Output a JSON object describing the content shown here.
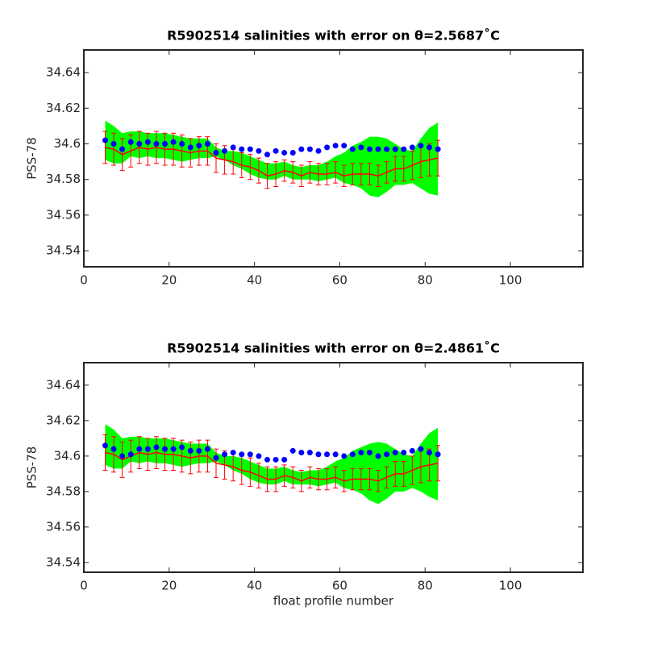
{
  "chart_data": [
    {
      "type": "errorbar",
      "title": "R5902514 salinities with error on θ=2.5687˚C",
      "ylabel": "PSS-78",
      "xlim": [
        0,
        117
      ],
      "xticks": [
        0,
        20,
        40,
        60,
        80,
        100
      ],
      "ylim": [
        34.531,
        34.6527
      ],
      "yticks": [
        34.54,
        34.56,
        34.58,
        34.6,
        34.62,
        34.64
      ],
      "x": [
        5,
        7,
        9,
        11,
        13,
        15,
        17,
        19,
        21,
        23,
        25,
        27,
        29,
        31,
        33,
        35,
        37,
        39,
        41,
        43,
        45,
        47,
        49,
        51,
        53,
        55,
        57,
        59,
        61,
        63,
        65,
        67,
        69,
        71,
        73,
        75,
        77,
        79,
        81,
        83
      ],
      "band": {
        "color": "#00ff00",
        "lower": [
          34.591,
          34.589,
          34.589,
          34.593,
          34.592,
          34.593,
          34.592,
          34.592,
          34.591,
          34.59,
          34.591,
          34.592,
          34.592,
          34.593,
          34.591,
          34.588,
          34.586,
          34.583,
          34.581,
          34.58,
          34.58,
          34.582,
          34.58,
          34.58,
          34.58,
          34.579,
          34.58,
          34.581,
          34.578,
          34.577,
          34.575,
          34.571,
          34.57,
          34.573,
          34.577,
          34.577,
          34.578,
          34.575,
          34.572,
          34.571
        ],
        "upper": [
          34.613,
          34.61,
          34.606,
          34.607,
          34.607,
          34.606,
          34.606,
          34.606,
          34.605,
          34.604,
          34.603,
          34.603,
          34.603,
          34.598,
          34.596,
          34.596,
          34.595,
          34.593,
          34.591,
          34.589,
          34.589,
          34.59,
          34.588,
          34.587,
          34.588,
          34.588,
          34.59,
          34.593,
          34.595,
          34.599,
          34.601,
          34.604,
          34.604,
          34.603,
          34.6,
          34.597,
          34.596,
          34.603,
          34.609,
          34.612
        ]
      },
      "series": [
        {
          "color": "#ff0000",
          "values": [
            34.598,
            34.597,
            34.594,
            34.596,
            34.598,
            34.597,
            34.598,
            34.597,
            34.597,
            34.596,
            34.595,
            34.596,
            34.596,
            34.592,
            34.591,
            34.59,
            34.588,
            34.587,
            34.585,
            34.582,
            34.583,
            34.585,
            34.584,
            34.582,
            34.584,
            34.583,
            34.583,
            34.584,
            34.582,
            34.583,
            34.583,
            34.583,
            34.582,
            34.584,
            34.586,
            34.586,
            34.588,
            34.59,
            34.591,
            34.592
          ],
          "errors": [
            0.009,
            0.009,
            0.009,
            0.009,
            0.009,
            0.009,
            0.009,
            0.009,
            0.009,
            0.009,
            0.008,
            0.008,
            0.008,
            0.008,
            0.008,
            0.007,
            0.007,
            0.007,
            0.007,
            0.007,
            0.007,
            0.006,
            0.006,
            0.006,
            0.006,
            0.006,
            0.006,
            0.006,
            0.006,
            0.006,
            0.006,
            0.006,
            0.006,
            0.006,
            0.007,
            0.007,
            0.008,
            0.009,
            0.009,
            0.01
          ]
        },
        {
          "color": "#0000ff",
          "values": [
            34.602,
            34.6,
            34.597,
            34.601,
            34.6,
            34.601,
            34.6,
            34.6,
            34.601,
            34.6,
            34.598,
            34.599,
            34.6,
            34.595,
            34.596,
            34.598,
            34.597,
            34.597,
            34.596,
            34.594,
            34.596,
            34.595,
            34.595,
            34.597,
            34.597,
            34.596,
            34.598,
            34.599,
            34.599,
            34.597,
            34.598,
            34.597,
            34.597,
            34.597,
            34.597,
            34.597,
            34.598,
            34.599,
            34.598,
            34.597
          ]
        }
      ]
    },
    {
      "type": "errorbar",
      "title": "R5902514 salinities with error on θ=2.4861˚C",
      "ylabel": "PSS-78",
      "xlabel": "float profile number",
      "xlim": [
        0,
        117
      ],
      "xticks": [
        0,
        20,
        40,
        60,
        80,
        100
      ],
      "ylim": [
        34.5345,
        34.6527
      ],
      "yticks": [
        34.54,
        34.56,
        34.58,
        34.6,
        34.62,
        34.64
      ],
      "x": [
        5,
        7,
        9,
        11,
        13,
        15,
        17,
        19,
        21,
        23,
        25,
        27,
        29,
        31,
        33,
        35,
        37,
        39,
        41,
        43,
        45,
        47,
        49,
        51,
        53,
        55,
        57,
        59,
        61,
        63,
        65,
        67,
        69,
        71,
        73,
        75,
        77,
        79,
        81,
        83
      ],
      "band": {
        "color": "#00ff00",
        "lower": [
          34.595,
          34.593,
          34.593,
          34.597,
          34.596,
          34.597,
          34.596,
          34.596,
          34.595,
          34.594,
          34.595,
          34.596,
          34.596,
          34.597,
          34.595,
          34.592,
          34.59,
          34.587,
          34.585,
          34.584,
          34.584,
          34.586,
          34.584,
          34.584,
          34.584,
          34.583,
          34.584,
          34.585,
          34.582,
          34.581,
          34.579,
          34.575,
          34.573,
          34.576,
          34.58,
          34.58,
          34.582,
          34.58,
          34.577,
          34.575
        ],
        "upper": [
          34.618,
          34.615,
          34.61,
          34.611,
          34.611,
          34.61,
          34.61,
          34.61,
          34.609,
          34.608,
          34.607,
          34.607,
          34.607,
          34.602,
          34.6,
          34.6,
          34.599,
          34.597,
          34.595,
          34.593,
          34.593,
          34.594,
          34.592,
          34.591,
          34.592,
          34.592,
          34.594,
          34.597,
          34.599,
          34.603,
          34.605,
          34.607,
          34.608,
          34.607,
          34.604,
          34.601,
          34.6,
          34.607,
          34.613,
          34.616
        ]
      },
      "series": [
        {
          "color": "#ff0000",
          "values": [
            34.602,
            34.601,
            34.598,
            34.6,
            34.602,
            34.601,
            34.602,
            34.601,
            34.601,
            34.6,
            34.599,
            34.6,
            34.6,
            34.596,
            34.595,
            34.594,
            34.592,
            34.591,
            34.589,
            34.587,
            34.587,
            34.589,
            34.588,
            34.586,
            34.588,
            34.587,
            34.587,
            34.588,
            34.586,
            34.587,
            34.587,
            34.587,
            34.586,
            34.588,
            34.59,
            34.59,
            34.592,
            34.594,
            34.595,
            34.596
          ],
          "errors": [
            0.01,
            0.01,
            0.01,
            0.009,
            0.009,
            0.009,
            0.009,
            0.009,
            0.009,
            0.009,
            0.009,
            0.009,
            0.009,
            0.008,
            0.008,
            0.008,
            0.008,
            0.008,
            0.007,
            0.007,
            0.007,
            0.006,
            0.006,
            0.006,
            0.006,
            0.006,
            0.006,
            0.006,
            0.006,
            0.006,
            0.006,
            0.006,
            0.006,
            0.006,
            0.007,
            0.007,
            0.008,
            0.009,
            0.009,
            0.01
          ]
        },
        {
          "color": "#0000ff",
          "values": [
            34.606,
            34.604,
            34.6,
            34.601,
            34.604,
            34.604,
            34.605,
            34.604,
            34.604,
            34.605,
            34.603,
            34.603,
            34.604,
            34.599,
            34.601,
            34.602,
            34.601,
            34.601,
            34.6,
            34.598,
            34.598,
            34.598,
            34.603,
            34.602,
            34.602,
            34.601,
            34.601,
            34.601,
            34.6,
            34.601,
            34.602,
            34.602,
            34.6,
            34.601,
            34.602,
            34.602,
            34.603,
            34.604,
            34.602,
            34.601
          ]
        }
      ]
    }
  ]
}
